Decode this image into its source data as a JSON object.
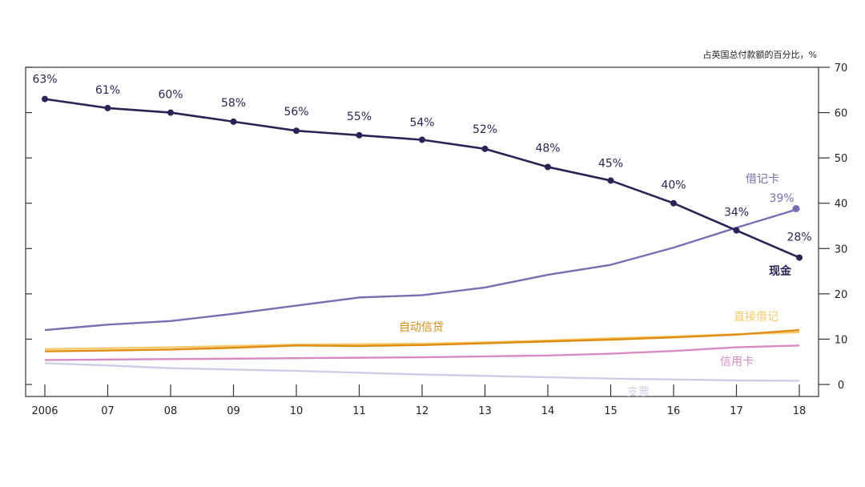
{
  "chart_data": {
    "type": "line",
    "unit_label": "占英国总付款额的百分比，%",
    "x": [
      "2006",
      "07",
      "08",
      "09",
      "10",
      "11",
      "12",
      "13",
      "14",
      "15",
      "16",
      "17",
      "18"
    ],
    "ylim": [
      0,
      70
    ],
    "yticks": [
      0,
      10,
      20,
      30,
      40,
      50,
      60,
      70
    ],
    "y_axis_side": "right",
    "grid": false,
    "series": [
      {
        "name": "现金",
        "color": "#2a2456",
        "markers": true,
        "values": [
          63,
          61,
          60,
          58,
          56,
          55,
          54,
          52,
          48,
          45,
          40,
          34,
          28
        ],
        "data_labels": [
          "63%",
          "61%",
          "60%",
          "58%",
          "56%",
          "55%",
          "54%",
          "52%",
          "48%",
          "45%",
          "40%",
          "34%",
          "28%"
        ]
      },
      {
        "name": "借记卡",
        "color": "#7570b3",
        "markers": false,
        "end_marker": true,
        "values": [
          12,
          13.2,
          14,
          15.6,
          17.4,
          19.2,
          19.7,
          21.4,
          24.2,
          26.4,
          30.2,
          34.6,
          38.8
        ],
        "end_label": "39%"
      },
      {
        "name": "自动信贷",
        "color": "#e08c12",
        "markers": false,
        "values": [
          7.3,
          7.5,
          7.7,
          8.1,
          8.6,
          8.5,
          8.7,
          9.1,
          9.5,
          9.9,
          10.4,
          11,
          12
        ]
      },
      {
        "name": "直接借记",
        "color": "#f5c96a",
        "markers": false,
        "values": [
          7.8,
          8,
          8.2,
          8.5,
          8.8,
          8.9,
          9,
          9.3,
          9.7,
          10.2,
          10.6,
          11.1,
          11.5
        ]
      },
      {
        "name": "信用卡",
        "color": "#d98ac4",
        "markers": false,
        "values": [
          5.4,
          5.5,
          5.6,
          5.7,
          5.8,
          5.9,
          6,
          6.2,
          6.4,
          6.8,
          7.4,
          8.2,
          8.6
        ]
      },
      {
        "name": "支票",
        "color": "#cfcde6",
        "markers": false,
        "values": [
          4.7,
          4.2,
          3.6,
          3.3,
          3.0,
          2.6,
          2.2,
          1.9,
          1.6,
          1.3,
          1.1,
          0.9,
          0.8
        ]
      }
    ]
  }
}
